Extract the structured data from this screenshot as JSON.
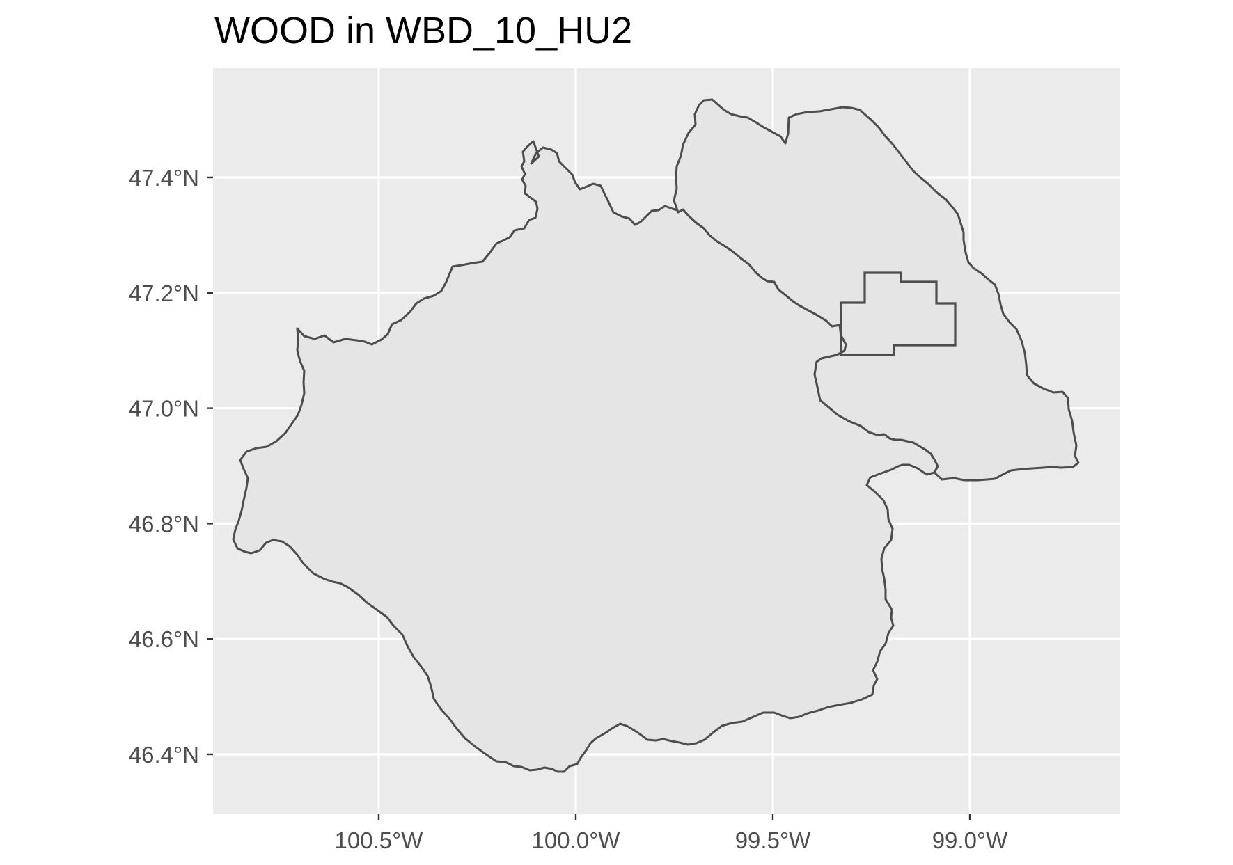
{
  "map": {
    "title": "WOOD in WBD_10_HU2",
    "x_ticks": [
      {
        "lon": -100.5,
        "label": "100.5°W"
      },
      {
        "lon": -100.0,
        "label": "100.0°W"
      },
      {
        "lon": -99.5,
        "label": "99.5°W"
      },
      {
        "lon": -99.0,
        "label": "99.0°W"
      }
    ],
    "y_ticks": [
      {
        "lat": 47.4,
        "label": "47.4°N"
      },
      {
        "lat": 47.2,
        "label": "47.2°N"
      },
      {
        "lat": 47.0,
        "label": "47.0°N"
      },
      {
        "lat": 46.8,
        "label": "46.8°N"
      },
      {
        "lat": 46.6,
        "label": "46.6°N"
      },
      {
        "lat": 46.4,
        "label": "46.4°N"
      }
    ],
    "colors": {
      "panel_background": "#ebebeb",
      "polygon_fill": "#e5e5e5",
      "polygon_stroke": "#4d4d4d",
      "gridline": "#ffffff"
    }
  }
}
